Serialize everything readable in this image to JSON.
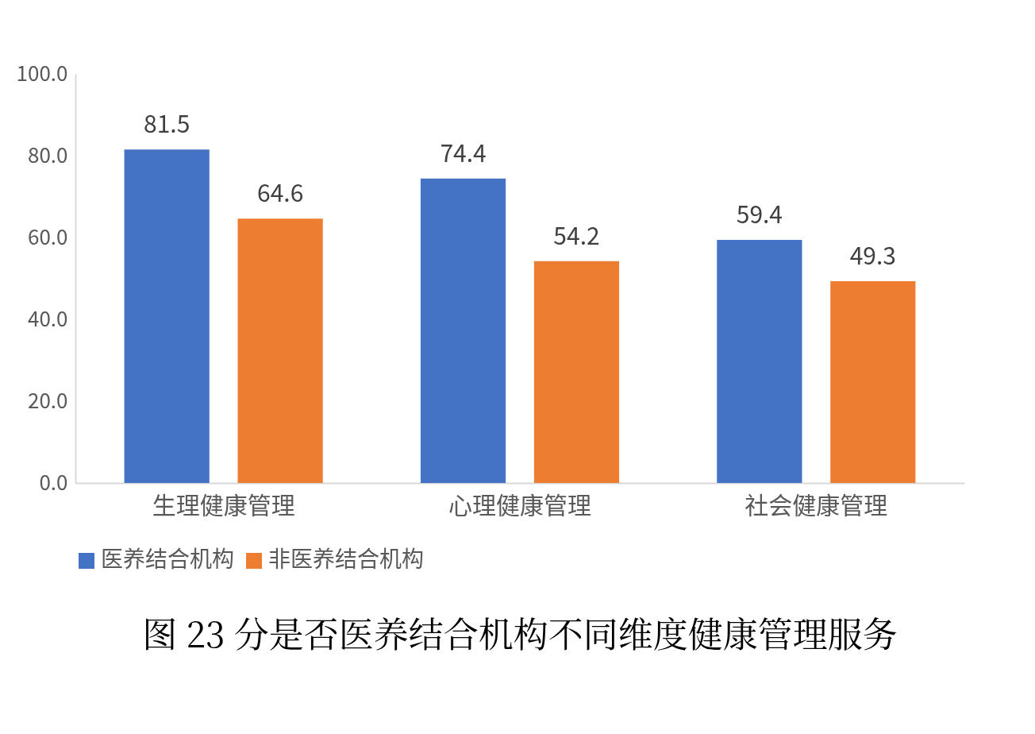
{
  "chart_data": {
    "type": "bar",
    "title": "图 23  分是否医养结合机构不同维度健康管理服务",
    "categories": [
      "生理健康管理",
      "心理健康管理",
      "社会健康管理"
    ],
    "series": [
      {
        "name": "医养结合机构",
        "color": "#4472c4",
        "values": [
          81.5,
          74.4,
          59.4
        ]
      },
      {
        "name": "非医养结合机构",
        "color": "#ed7d31",
        "values": [
          64.6,
          54.2,
          49.3
        ]
      }
    ],
    "ylim": [
      0,
      100
    ],
    "yticks": [
      {
        "value": 0,
        "label": "0.0"
      },
      {
        "value": 20,
        "label": "20.0"
      },
      {
        "value": 40,
        "label": "40.0"
      },
      {
        "value": 60,
        "label": "60.0"
      },
      {
        "value": 80,
        "label": "80.0"
      },
      {
        "value": 100,
        "label": "100.0"
      }
    ],
    "data_labels": true,
    "grid": false,
    "legend": "bottom"
  }
}
